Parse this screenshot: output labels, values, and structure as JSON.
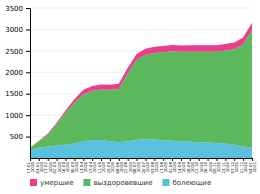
{
  "chart_data": {
    "type": "area",
    "stacked": true,
    "grid": true,
    "categories": [
      "17.01\n2020",
      "03.02\n2020",
      "17.02\n2020",
      "02.03\n2020",
      "16.03\n2020",
      "30.03\n2020",
      "13.04\n2020",
      "27.04\n2020",
      "11.05\n2020",
      "25.05\n2020",
      "08.06\n2020",
      "22.06\n2020",
      "06.07\n2020",
      "20.07\n2020",
      "03.08\n2020",
      "17.08\n2020",
      "31.08\n2020",
      "14.09\n2020",
      "28.09\n2020",
      "12.10\n2020",
      "26.10\n2020",
      "09.11\n2020",
      "23.11\n2020",
      "07.12\n2020",
      "21.12\n2020",
      "04.01\n2021"
    ],
    "series": [
      {
        "name": "болеющие",
        "color": "#5bc0de",
        "values": [
          180,
          240,
          270,
          290,
          310,
          340,
          390,
          420,
          420,
          390,
          370,
          390,
          420,
          440,
          430,
          410,
          400,
          390,
          380,
          370,
          360,
          350,
          340,
          310,
          270,
          240
        ]
      },
      {
        "name": "выздоровевшие",
        "color": "#5cb85c",
        "values": [
          50,
          150,
          280,
          500,
          750,
          950,
          1100,
          1150,
          1180,
          1200,
          1240,
          1580,
          1870,
          1970,
          2020,
          2060,
          2090,
          2090,
          2100,
          2110,
          2120,
          2130,
          2170,
          2230,
          2380,
          2750
        ]
      },
      {
        "name": "умершие",
        "color": "#e83e8c",
        "values": [
          10,
          15,
          20,
          30,
          50,
          80,
          100,
          110,
          115,
          120,
          125,
          130,
          135,
          140,
          143,
          145,
          146,
          147,
          148,
          149,
          150,
          151,
          152,
          155,
          160,
          165
        ]
      }
    ],
    "ylim": [
      0,
      3500
    ],
    "yticks": [
      500,
      1000,
      1500,
      2000,
      2500,
      3000,
      3500
    ]
  }
}
